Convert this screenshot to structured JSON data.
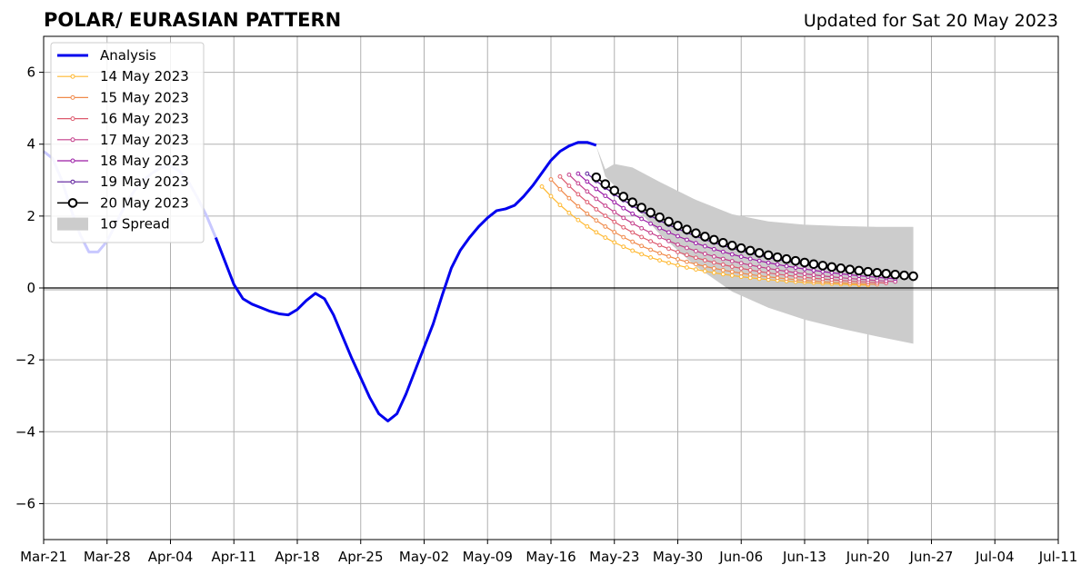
{
  "header": {
    "title": "POLAR/ EURASIAN  PATTERN",
    "updated": "Updated for Sat 20 May 2023"
  },
  "chart_data": {
    "type": "line",
    "title": "POLAR/ EURASIAN  PATTERN",
    "subtitle": "Updated for Sat 20 May 2023",
    "xlabel": "",
    "ylabel": "",
    "x_range": [
      "2023-03-21",
      "2023-07-11"
    ],
    "ylim": [
      -7,
      7
    ],
    "x_ticks": [
      "Mar-21",
      "Mar-28",
      "Apr-04",
      "Apr-11",
      "Apr-18",
      "Apr-25",
      "May-02",
      "May-09",
      "May-16",
      "May-23",
      "May-30",
      "Jun-06",
      "Jun-13",
      "Jun-20",
      "Jun-27",
      "Jul-04",
      "Jul-11"
    ],
    "y_ticks": [
      -6,
      -4,
      -2,
      0,
      2,
      4,
      6
    ],
    "y_tick_labels": [
      "−6",
      "−4",
      "−2",
      "0",
      "2",
      "4",
      "6"
    ],
    "grid": true,
    "legend_position": "top-left",
    "analysis": {
      "name": "Analysis",
      "color": "#0000ee",
      "faded_color": "#c8c8ff",
      "faded_until": "2023-04-09",
      "points": [
        [
          "2023-03-21",
          3.8
        ],
        [
          "2023-03-22",
          3.6
        ],
        [
          "2023-03-23",
          3.0
        ],
        [
          "2023-03-24",
          2.2
        ],
        [
          "2023-03-25",
          1.5
        ],
        [
          "2023-03-26",
          1.0
        ],
        [
          "2023-03-27",
          1.0
        ],
        [
          "2023-03-28",
          1.3
        ],
        [
          "2023-03-29",
          1.8
        ],
        [
          "2023-03-30",
          2.3
        ],
        [
          "2023-03-31",
          2.7
        ],
        [
          "2023-04-01",
          3.0
        ],
        [
          "2023-04-02",
          3.2
        ],
        [
          "2023-04-03",
          3.35
        ],
        [
          "2023-04-04",
          3.4
        ],
        [
          "2023-04-05",
          3.25
        ],
        [
          "2023-04-06",
          2.95
        ],
        [
          "2023-04-07",
          2.5
        ],
        [
          "2023-04-08",
          2.0
        ],
        [
          "2023-04-09",
          1.4
        ],
        [
          "2023-04-10",
          0.75
        ],
        [
          "2023-04-11",
          0.1
        ],
        [
          "2023-04-12",
          -0.3
        ],
        [
          "2023-04-13",
          -0.45
        ],
        [
          "2023-04-14",
          -0.55
        ],
        [
          "2023-04-15",
          -0.65
        ],
        [
          "2023-04-16",
          -0.72
        ],
        [
          "2023-04-17",
          -0.75
        ],
        [
          "2023-04-18",
          -0.6
        ],
        [
          "2023-04-19",
          -0.35
        ],
        [
          "2023-04-20",
          -0.15
        ],
        [
          "2023-04-21",
          -0.3
        ],
        [
          "2023-04-22",
          -0.75
        ],
        [
          "2023-04-23",
          -1.35
        ],
        [
          "2023-04-24",
          -1.95
        ],
        [
          "2023-04-25",
          -2.5
        ],
        [
          "2023-04-26",
          -3.05
        ],
        [
          "2023-04-27",
          -3.5
        ],
        [
          "2023-04-28",
          -3.7
        ],
        [
          "2023-04-29",
          -3.5
        ],
        [
          "2023-04-30",
          -2.95
        ],
        [
          "2023-05-01",
          -2.3
        ],
        [
          "2023-05-02",
          -1.65
        ],
        [
          "2023-05-03",
          -1.0
        ],
        [
          "2023-05-04",
          -0.2
        ],
        [
          "2023-05-05",
          0.55
        ],
        [
          "2023-05-06",
          1.05
        ],
        [
          "2023-05-07",
          1.4
        ],
        [
          "2023-05-08",
          1.7
        ],
        [
          "2023-05-09",
          1.95
        ],
        [
          "2023-05-10",
          2.15
        ],
        [
          "2023-05-11",
          2.2
        ],
        [
          "2023-05-12",
          2.3
        ],
        [
          "2023-05-13",
          2.55
        ],
        [
          "2023-05-14",
          2.85
        ],
        [
          "2023-05-15",
          3.2
        ],
        [
          "2023-05-16",
          3.55
        ],
        [
          "2023-05-17",
          3.8
        ],
        [
          "2023-05-18",
          3.95
        ],
        [
          "2023-05-19",
          4.05
        ],
        [
          "2023-05-20",
          4.05
        ],
        [
          "2023-05-21",
          3.97
        ]
      ]
    },
    "spread": {
      "name": "1σ Spread",
      "color": "#cccccc",
      "points": [
        [
          "2023-05-21",
          3.95,
          3.95
        ],
        [
          "2023-05-22",
          3.3,
          3.1
        ],
        [
          "2023-05-23",
          3.45,
          2.85
        ],
        [
          "2023-05-25",
          3.35,
          2.35
        ],
        [
          "2023-05-28",
          2.95,
          1.5
        ],
        [
          "2023-06-01",
          2.45,
          0.6
        ],
        [
          "2023-06-05",
          2.05,
          -0.1
        ],
        [
          "2023-06-09",
          1.85,
          -0.55
        ],
        [
          "2023-06-13",
          1.76,
          -0.88
        ],
        [
          "2023-06-17",
          1.72,
          -1.13
        ],
        [
          "2023-06-21",
          1.7,
          -1.35
        ],
        [
          "2023-06-25",
          1.7,
          -1.55
        ]
      ]
    },
    "forecasts": [
      {
        "name": "14 May 2023",
        "color": "#ffb830",
        "start": "2023-05-15",
        "end": "2023-06-20",
        "y0": 2.82,
        "k": 0.1
      },
      {
        "name": "15 May 2023",
        "color": "#f08a4b",
        "start": "2023-05-16",
        "end": "2023-06-21",
        "y0": 3.02,
        "k": 0.095
      },
      {
        "name": "16 May 2023",
        "color": "#dd5a6e",
        "start": "2023-05-17",
        "end": "2023-06-22",
        "y0": 3.1,
        "k": 0.087
      },
      {
        "name": "17 May 2023",
        "color": "#c43e8a",
        "start": "2023-05-18",
        "end": "2023-06-23",
        "y0": 3.15,
        "k": 0.08
      },
      {
        "name": "18 May 2023",
        "color": "#9a1aa5",
        "start": "2023-05-19",
        "end": "2023-06-23",
        "y0": 3.18,
        "k": 0.072
      },
      {
        "name": "19 May 2023",
        "color": "#5a1a9a",
        "start": "2023-05-20",
        "end": "2023-06-23",
        "y0": 3.18,
        "k": 0.066
      },
      {
        "name": "20 May 2023",
        "color": "#000000",
        "start": "2023-05-21",
        "end": "2023-06-25",
        "y0": 3.08,
        "k": 0.064,
        "marker": "large-open"
      }
    ]
  },
  "legend": {
    "items": [
      {
        "label": "Analysis",
        "style": "thick-line",
        "color": "#0000ee"
      },
      {
        "label": "14 May 2023",
        "style": "thin-dot",
        "color": "#ffb830"
      },
      {
        "label": "15 May 2023",
        "style": "thin-dot",
        "color": "#f08a4b"
      },
      {
        "label": "16 May 2023",
        "style": "thin-dot",
        "color": "#dd5a6e"
      },
      {
        "label": "17 May 2023",
        "style": "thin-dot",
        "color": "#c43e8a"
      },
      {
        "label": "18 May 2023",
        "style": "thin-dot",
        "color": "#9a1aa5"
      },
      {
        "label": "19 May 2023",
        "style": "thin-dot",
        "color": "#5a1a9a"
      },
      {
        "label": "20 May 2023",
        "style": "open-circle",
        "color": "#000000"
      },
      {
        "label": "1σ Spread",
        "style": "patch",
        "color": "#cccccc"
      }
    ]
  }
}
